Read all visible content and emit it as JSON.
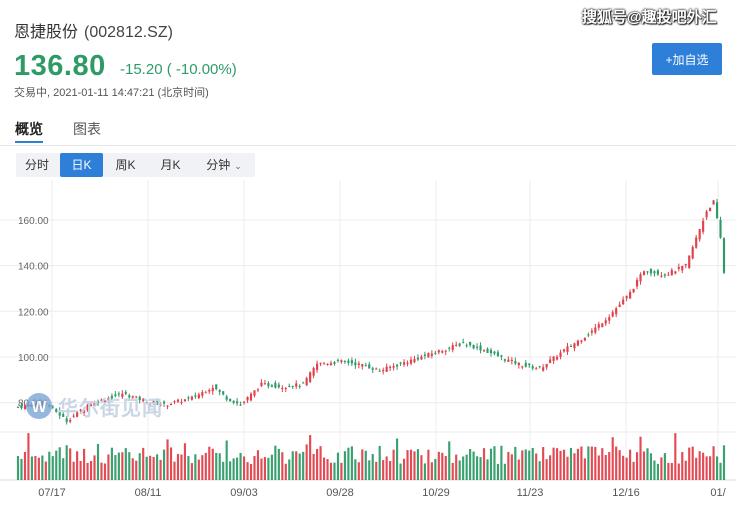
{
  "watermark_top": "搜狐号@趣投吧外汇",
  "stock": {
    "name": "恩捷股份",
    "code": "(002812.SZ)",
    "price": "136.80",
    "change": "-15.20 ( -10.00%)",
    "status_label": "交易中,",
    "timestamp": "2021-01-11 14:47:21 (北京时间)"
  },
  "add_watch_label": "+加自选",
  "tabs": [
    {
      "label": "概览"
    },
    {
      "label": "图表"
    }
  ],
  "periods": [
    "分时",
    "日K",
    "周K",
    "月K",
    "分钟"
  ],
  "logo_text": "华尔街见闻",
  "colors": {
    "up": "#e0414b",
    "down": "#2e9b67",
    "accent": "#2e7fd8"
  },
  "chart_data": {
    "type": "candlestick",
    "x_tick_labels": [
      "07/17",
      "08/11",
      "09/03",
      "09/28",
      "10/29",
      "11/23",
      "12/16",
      "01/"
    ],
    "y_tick_labels": [
      "80.00",
      "100.00",
      "120.00",
      "140.00",
      "160.00"
    ],
    "ylim": [
      68,
      174
    ],
    "grid": true,
    "close_anchors": [
      [
        0,
        78
      ],
      [
        8,
        80
      ],
      [
        14,
        72
      ],
      [
        20,
        79
      ],
      [
        30,
        84
      ],
      [
        36,
        81
      ],
      [
        42,
        79
      ],
      [
        50,
        82
      ],
      [
        56,
        87
      ],
      [
        60,
        82
      ],
      [
        64,
        79
      ],
      [
        70,
        88
      ],
      [
        76,
        87
      ],
      [
        82,
        88
      ],
      [
        86,
        97
      ],
      [
        94,
        98
      ],
      [
        100,
        96
      ],
      [
        104,
        94
      ],
      [
        112,
        98
      ],
      [
        120,
        102
      ],
      [
        128,
        106
      ],
      [
        134,
        103
      ],
      [
        140,
        99
      ],
      [
        146,
        96
      ],
      [
        150,
        95
      ],
      [
        158,
        104
      ],
      [
        164,
        110
      ],
      [
        170,
        118
      ],
      [
        176,
        128
      ],
      [
        180,
        138
      ],
      [
        186,
        136
      ],
      [
        192,
        140
      ],
      [
        198,
        164
      ],
      [
        200,
        168
      ],
      [
        202,
        152
      ],
      [
        203,
        137
      ]
    ]
  }
}
